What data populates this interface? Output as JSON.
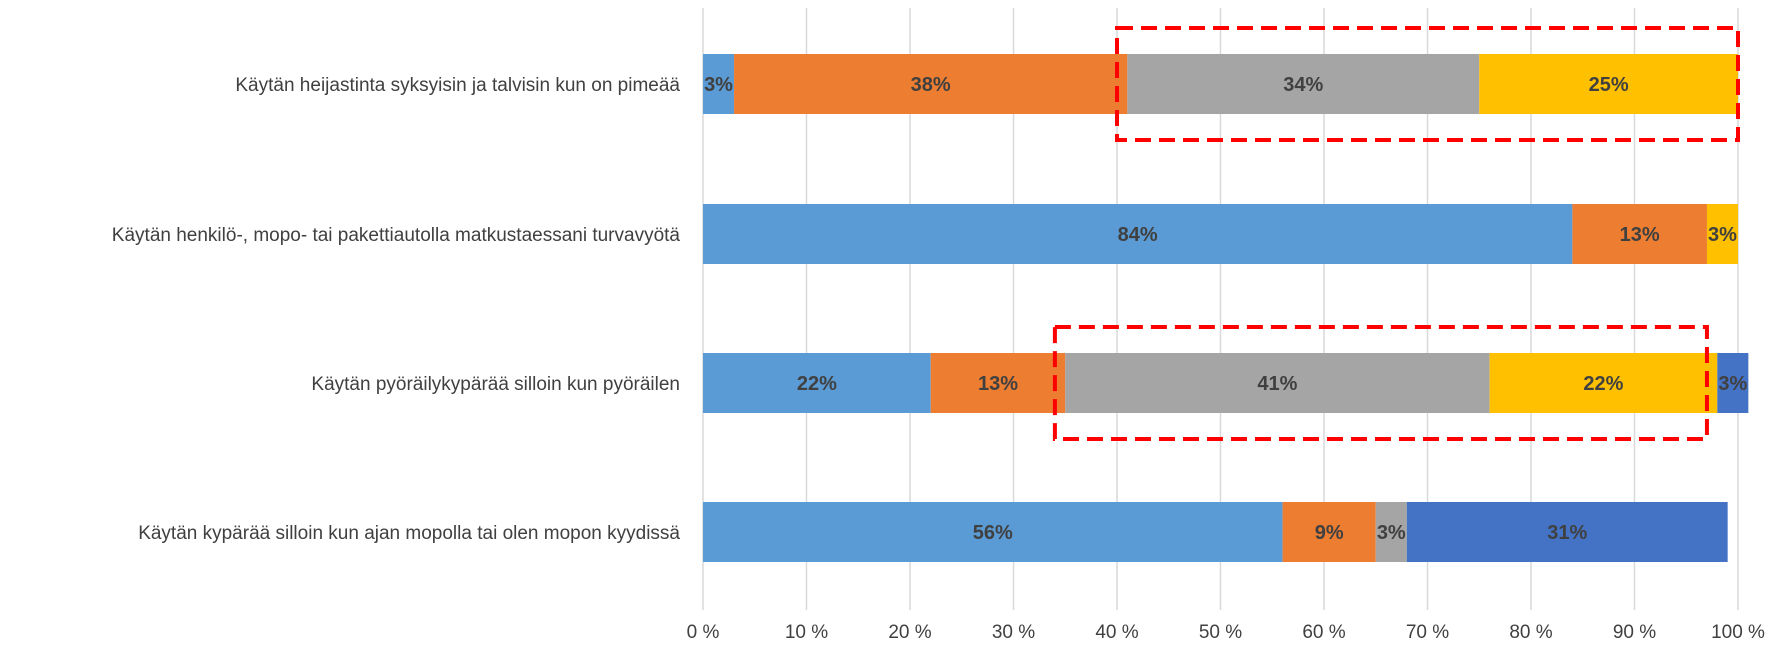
{
  "chart_data": {
    "type": "bar",
    "orientation": "horizontal",
    "stacked": true,
    "percent_stacked": true,
    "categories": [
      "Käytän heijastinta syksyisin ja talvisin kun on pimeää",
      "Käytän henkilö-, mopo- tai pakettiautolla matkustaessani turvavyötä",
      "Käytän pyöräilykypärää silloin kun pyöräilen",
      "Käytän kypärää silloin kun ajan mopolla tai olen mopon kyydissä"
    ],
    "series": [
      {
        "color": "#5b9bd5",
        "values": [
          3,
          84,
          22,
          56
        ],
        "labels": [
          "3%",
          "84%",
          "22%",
          "56%"
        ]
      },
      {
        "color": "#ed7d31",
        "values": [
          38,
          13,
          13,
          9
        ],
        "labels": [
          "38%",
          "13%",
          "13%",
          "9%"
        ]
      },
      {
        "color": "#a5a5a5",
        "values": [
          34,
          0,
          41,
          3
        ],
        "labels": [
          "34%",
          "",
          "41%",
          "3%"
        ]
      },
      {
        "color": "#ffc000",
        "values": [
          25,
          3,
          22,
          0
        ],
        "labels": [
          "25%",
          "3%",
          "22%",
          ""
        ]
      },
      {
        "color": "#4472c4",
        "values": [
          0,
          0,
          3,
          31
        ],
        "labels": [
          "",
          "",
          "3%",
          "31%"
        ]
      }
    ],
    "xaxis": {
      "min": 0,
      "max": 100,
      "ticks": [
        0,
        10,
        20,
        30,
        40,
        50,
        60,
        70,
        80,
        90,
        100
      ],
      "tick_labels": [
        "0 %",
        "10 %",
        "20 %",
        "30 %",
        "40 %",
        "50 %",
        "60 %",
        "70 %",
        "80 %",
        "90 %",
        "100 %"
      ]
    },
    "grid": true,
    "legend": "none",
    "annotations": [
      {
        "type": "dashed-box",
        "color": "#ff0000",
        "category": "Käytän heijastinta syksyisin ja talvisin kun on pimeää",
        "from": 40,
        "to": 100
      },
      {
        "type": "dashed-box",
        "color": "#ff0000",
        "category": "Käytän pyöräilykypärää silloin kun pyöräilen",
        "from": 34,
        "to": 97
      }
    ]
  }
}
